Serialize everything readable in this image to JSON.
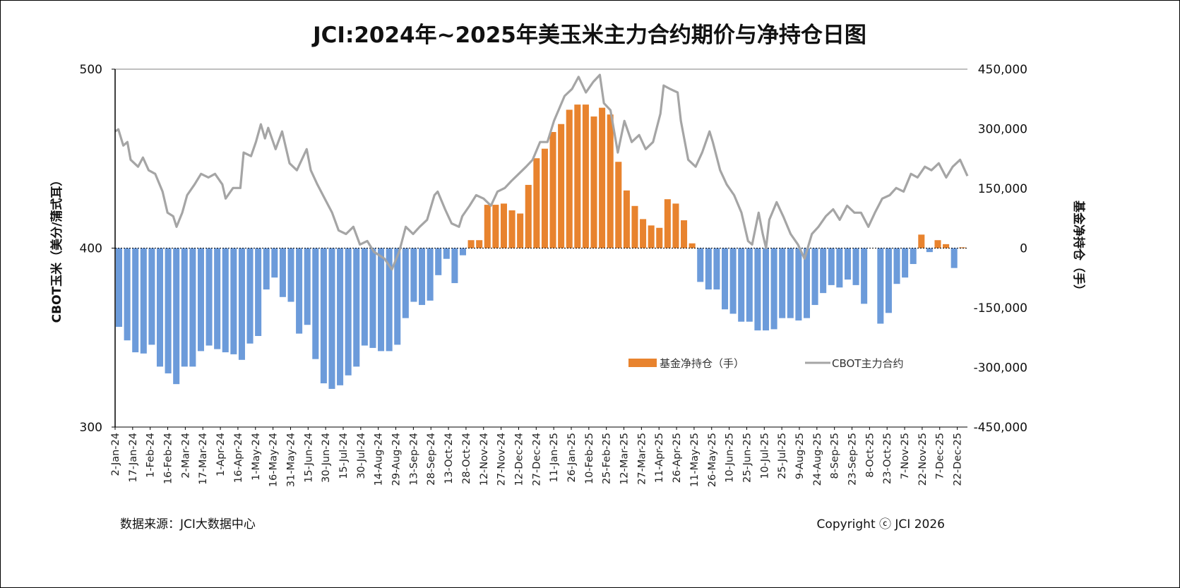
{
  "chart_data": {
    "type": "bar+line",
    "title": "JCI:2024年~2025年美玉米主力合约期价与净持仓日图",
    "ylabel_left": "CBOT玉米（美分/蒲式耳）",
    "ylabel_right": "基金净持仓（手）",
    "ylim_left": [
      300,
      500
    ],
    "ylim_right": [
      -450000,
      450000
    ],
    "yticks_left": [
      "500",
      "400",
      "300"
    ],
    "yticks_left_values": [
      500,
      400,
      300
    ],
    "yticks_right": [
      "450,000",
      "300,000",
      "150,000",
      "0",
      "-150,000",
      "-300,000",
      "-450,000"
    ],
    "yticks_right_values": [
      450000,
      300000,
      150000,
      0,
      -150000,
      -300000,
      -450000
    ],
    "x_unit": "weeks since 2-Jan-24",
    "xlim": [
      0,
      104.1
    ],
    "xtick_step_weeks": 2.142857,
    "xticks": [
      "2-Jan-24",
      "17-Jan-24",
      "1-Feb-24",
      "16-Feb-24",
      "2-Mar-24",
      "17-Mar-24",
      "1-Apr-24",
      "16-Apr-24",
      "1-May-24",
      "16-May-24",
      "31-May-24",
      "15-Jun-24",
      "30-Jun-24",
      "15-Jul-24",
      "30-Jul-24",
      "14-Aug-24",
      "29-Aug-24",
      "13-Sep-24",
      "28-Sep-24",
      "13-Oct-24",
      "28-Oct-24",
      "12-Nov-24",
      "27-Nov-24",
      "12-Dec-24",
      "27-Dec-24",
      "11-Jan-25",
      "26-Jan-25",
      "10-Feb-25",
      "25-Feb-25",
      "12-Mar-25",
      "27-Mar-25",
      "11-Apr-25",
      "26-Apr-25",
      "11-May-25",
      "26-May-25",
      "10-Jun-25",
      "25-Jun-25",
      "10-Jul-25",
      "25-Jul-25",
      "9-Aug-25",
      "24-Aug-25",
      "8-Sep-25",
      "23-Sep-25",
      "8-Oct-25",
      "23-Oct-25",
      "7-Nov-25",
      "22-Nov-25",
      "7-Dec-25",
      "22-Dec-25"
    ],
    "legend_position": "bottom-right inside",
    "series": [
      {
        "name": "基金净持仓（手）",
        "type": "bar",
        "axis": "right",
        "positive_color": "#E8832E",
        "negative_color": "#6C9BDA",
        "weekly_values": [
          -198000,
          -232000,
          -262000,
          -265000,
          -243000,
          -298000,
          -315000,
          -342000,
          -298000,
          -298000,
          -259000,
          -245000,
          -254000,
          -262000,
          -267000,
          -281000,
          -240000,
          -221000,
          -104000,
          -74000,
          -123000,
          -135000,
          -215000,
          -193000,
          -279000,
          -340000,
          -354000,
          -345000,
          -320000,
          -298000,
          -245000,
          -251000,
          -259000,
          -259000,
          -243000,
          -176000,
          -135000,
          -143000,
          -132000,
          -68000,
          -27000,
          -88000,
          -18000,
          20000,
          20000,
          109000,
          109000,
          112000,
          95000,
          87000,
          159000,
          226000,
          250000,
          292000,
          312000,
          348000,
          361000,
          361000,
          331000,
          353000,
          336000,
          217000,
          145000,
          106000,
          73000,
          57000,
          51000,
          123000,
          112000,
          70000,
          12000,
          -85000,
          -104000,
          -104000,
          -154000,
          -165000,
          -185000,
          -185000,
          -207000,
          -207000,
          -204000,
          -176000,
          -176000,
          -182000,
          -176000,
          -143000,
          -113000,
          -93000,
          -99000,
          -79000,
          -93000,
          -140000,
          null,
          -190000,
          -163000,
          -90000,
          -74000,
          -40000,
          34000,
          -10000,
          20000,
          10000,
          -50000,
          2000
        ]
      },
      {
        "name": "CBOT主力合约",
        "type": "line",
        "axis": "left",
        "color": "#A5A5A5",
        "points": [
          [
            0,
            465.2
          ],
          [
            0.4,
            466.4
          ],
          [
            1.0,
            457.3
          ],
          [
            1.5,
            459.3
          ],
          [
            1.9,
            449.4
          ],
          [
            2.8,
            445.5
          ],
          [
            3.4,
            450.6
          ],
          [
            4.1,
            443.5
          ],
          [
            4.9,
            441.5
          ],
          [
            5.8,
            431.6
          ],
          [
            6.4,
            419.8
          ],
          [
            7.1,
            417.8
          ],
          [
            7.5,
            411.9
          ],
          [
            8.2,
            419.8
          ],
          [
            8.8,
            429.6
          ],
          [
            9.7,
            435.6
          ],
          [
            10.5,
            441.5
          ],
          [
            11.4,
            439.5
          ],
          [
            12.2,
            441.5
          ],
          [
            13.1,
            435.6
          ],
          [
            13.5,
            427.7
          ],
          [
            14.4,
            433.6
          ],
          [
            15.3,
            433.6
          ],
          [
            15.7,
            453.4
          ],
          [
            16.6,
            451.4
          ],
          [
            17.2,
            459.3
          ],
          [
            17.8,
            469.2
          ],
          [
            18.3,
            461.3
          ],
          [
            18.7,
            467.2
          ],
          [
            19.6,
            455.3
          ],
          [
            20.4,
            465.2
          ],
          [
            21.3,
            447.4
          ],
          [
            22.2,
            443.5
          ],
          [
            23.0,
            451.4
          ],
          [
            23.4,
            455.3
          ],
          [
            23.9,
            443.5
          ],
          [
            24.7,
            435.6
          ],
          [
            25.6,
            427.7
          ],
          [
            26.5,
            419.8
          ],
          [
            27.3,
            409.9
          ],
          [
            28.2,
            407.9
          ],
          [
            29.1,
            411.9
          ],
          [
            29.9,
            402.0
          ],
          [
            30.8,
            404.0
          ],
          [
            31.6,
            398.0
          ],
          [
            32.9,
            394.1
          ],
          [
            33.8,
            388.1
          ],
          [
            34.7,
            398.0
          ],
          [
            35.5,
            411.9
          ],
          [
            36.4,
            407.9
          ],
          [
            37.2,
            411.9
          ],
          [
            38.1,
            415.8
          ],
          [
            39.0,
            429.6
          ],
          [
            39.4,
            431.6
          ],
          [
            40.3,
            421.7
          ],
          [
            41.1,
            413.8
          ],
          [
            42.0,
            411.9
          ],
          [
            42.4,
            417.8
          ],
          [
            43.3,
            423.7
          ],
          [
            44.1,
            429.6
          ],
          [
            45.0,
            427.7
          ],
          [
            45.9,
            423.7
          ],
          [
            46.7,
            431.6
          ],
          [
            47.6,
            433.6
          ],
          [
            48.4,
            437.5
          ],
          [
            49.3,
            441.5
          ],
          [
            50.2,
            445.5
          ],
          [
            51.0,
            449.4
          ],
          [
            51.9,
            459.3
          ],
          [
            52.8,
            459.3
          ],
          [
            53.6,
            471.1
          ],
          [
            54.9,
            485.0
          ],
          [
            55.8,
            488.9
          ],
          [
            56.6,
            495.7
          ],
          [
            57.5,
            487.0
          ],
          [
            58.4,
            492.9
          ],
          [
            59.2,
            496.8
          ],
          [
            59.7,
            481.0
          ],
          [
            60.5,
            477.1
          ],
          [
            61.4,
            453.4
          ],
          [
            62.2,
            471.1
          ],
          [
            63.1,
            459.3
          ],
          [
            64.0,
            463.2
          ],
          [
            64.8,
            455.3
          ],
          [
            65.7,
            459.3
          ],
          [
            66.6,
            475.1
          ],
          [
            67.0,
            490.9
          ],
          [
            67.8,
            488.9
          ],
          [
            68.7,
            487.0
          ],
          [
            69.1,
            471.1
          ],
          [
            70.0,
            449.4
          ],
          [
            70.9,
            445.5
          ],
          [
            71.7,
            453.4
          ],
          [
            72.6,
            465.2
          ],
          [
            73.0,
            459.3
          ],
          [
            73.9,
            443.5
          ],
          [
            74.7,
            435.6
          ],
          [
            75.6,
            429.6
          ],
          [
            76.5,
            419.8
          ],
          [
            77.3,
            404.0
          ],
          [
            77.8,
            402.0
          ],
          [
            78.6,
            419.8
          ],
          [
            79.1,
            407.9
          ],
          [
            79.5,
            400.0
          ],
          [
            79.9,
            415.8
          ],
          [
            80.8,
            425.7
          ],
          [
            81.6,
            417.8
          ],
          [
            82.5,
            407.9
          ],
          [
            83.4,
            402.0
          ],
          [
            84.2,
            394.1
          ],
          [
            85.1,
            407.9
          ],
          [
            85.9,
            411.9
          ],
          [
            86.8,
            417.8
          ],
          [
            87.7,
            421.7
          ],
          [
            88.5,
            415.8
          ],
          [
            89.4,
            423.7
          ],
          [
            90.3,
            419.8
          ],
          [
            91.1,
            419.8
          ],
          [
            92.0,
            411.9
          ],
          [
            92.8,
            419.8
          ],
          [
            93.7,
            427.7
          ],
          [
            94.6,
            429.6
          ],
          [
            95.4,
            433.6
          ],
          [
            96.3,
            431.6
          ],
          [
            97.2,
            441.5
          ],
          [
            98.0,
            439.5
          ],
          [
            98.9,
            445.5
          ],
          [
            99.7,
            443.5
          ],
          [
            100.6,
            447.4
          ],
          [
            101.5,
            439.5
          ],
          [
            102.3,
            445.5
          ],
          [
            103.2,
            449.4
          ],
          [
            104.1,
            440.3
          ]
        ]
      }
    ]
  },
  "legend": {
    "bar_label": "基金净持仓（手）",
    "line_label": "CBOT主力合约"
  },
  "footer": {
    "source": "数据来源：JCI大数据中心",
    "copyright": "Copyright ⓒ JCI 2026"
  }
}
